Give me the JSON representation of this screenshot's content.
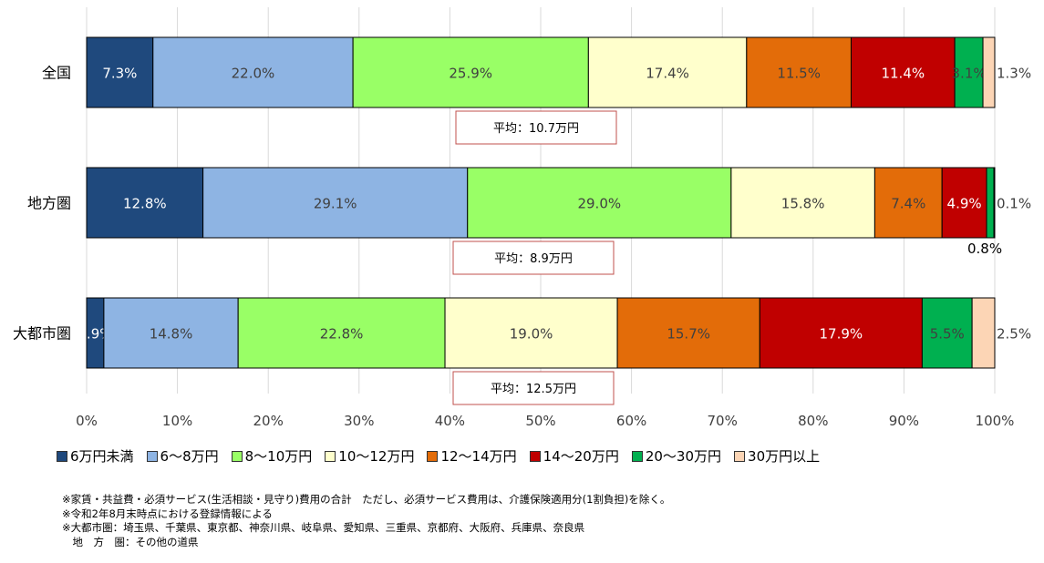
{
  "chart_data": {
    "type": "bar",
    "orientation": "horizontal",
    "stacked": "percent",
    "categories": [
      "全国",
      "地方圏",
      "大都市圏"
    ],
    "series": [
      {
        "name": "6万円未満",
        "color": "#1f497d",
        "values": [
          7.3,
          12.8,
          1.9
        ]
      },
      {
        "name": "6～8万円",
        "color": "#8eb4e3",
        "values": [
          22.0,
          29.1,
          14.8
        ]
      },
      {
        "name": "8～10万円",
        "color": "#99ff66",
        "values": [
          25.9,
          29.0,
          22.8
        ]
      },
      {
        "name": "10～12万円",
        "color": "#ffffcc",
        "values": [
          17.4,
          15.8,
          19.0
        ]
      },
      {
        "name": "12～14万円",
        "color": "#e36c09",
        "values": [
          11.5,
          7.4,
          15.7
        ]
      },
      {
        "name": "14～20万円",
        "color": "#c00000",
        "values": [
          11.4,
          4.9,
          17.9
        ]
      },
      {
        "name": "20～30万円",
        "color": "#00b050",
        "values": [
          3.1,
          0.8,
          5.5
        ]
      },
      {
        "name": "30万円以上",
        "color": "#fcd5b5",
        "values": [
          1.3,
          0.1,
          2.5
        ]
      }
    ],
    "data_labels": [
      [
        "7.3%",
        "22.0%",
        "25.9%",
        "17.4%",
        "11.5%",
        "11.4%",
        "3.1%",
        "1.3%"
      ],
      [
        "12.8%",
        "29.1%",
        "29.0%",
        "15.8%",
        "7.4%",
        "4.9%",
        "0.8%",
        "0.1%"
      ],
      [
        "1.9%",
        "14.8%",
        "22.8%",
        "19.0%",
        "15.7%",
        "17.9%",
        "5.5%",
        "2.5%"
      ]
    ],
    "averages": [
      "平均：10.7万円",
      "平均：8.9万円",
      "平均：12.5万円"
    ],
    "xlim": [
      0,
      100
    ],
    "x_ticks": [
      "0%",
      "10%",
      "20%",
      "30%",
      "40%",
      "50%",
      "60%",
      "70%",
      "80%",
      "90%",
      "100%"
    ],
    "grid": "vertical",
    "legend_position": "bottom",
    "title": "",
    "xlabel": "",
    "ylabel": ""
  },
  "notes": [
    "※家賃・共益費・必須サービス(生活相談・見守り)費用の合計　ただし、必須サービス費用は、介護保険適用分(1割負担)を除く。",
    "※令和2年8月末時点における登録情報による",
    "※大都市圏：埼玉県、千葉県、東京都、神奈川県、岐阜県、愛知県、三重県、京都府、大阪府、兵庫県、奈良県",
    "　地　方　圏：その他の道県"
  ]
}
